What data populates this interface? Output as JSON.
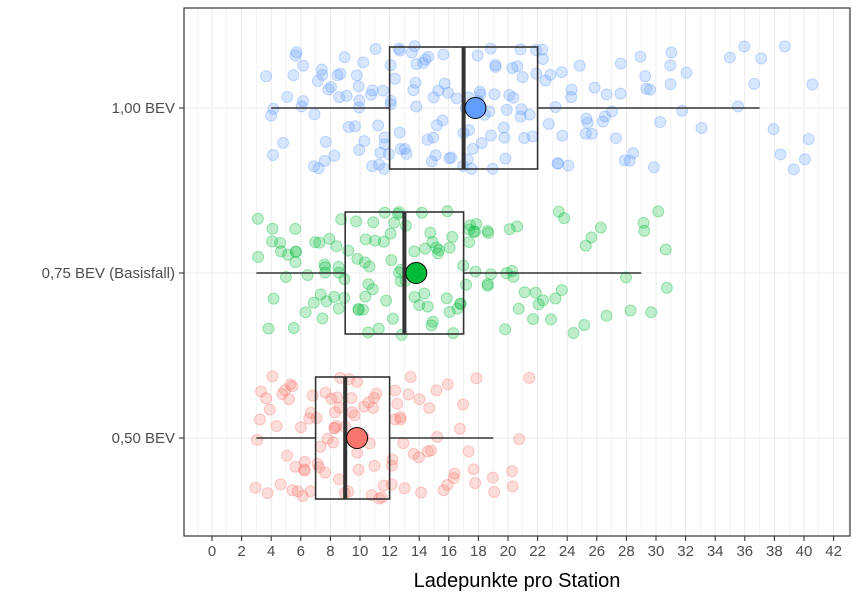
{
  "chart_data": {
    "type": "boxplot",
    "orientation": "horizontal",
    "xlabel": "Ladepunkte pro Station",
    "ylabel": "",
    "title": "",
    "xlim": [
      -2,
      43
    ],
    "x_ticks": [
      0,
      2,
      4,
      6,
      8,
      10,
      12,
      14,
      16,
      18,
      20,
      22,
      24,
      26,
      28,
      30,
      32,
      34,
      36,
      38,
      40,
      42
    ],
    "grid": true,
    "legend": "none",
    "categories": [
      "1,00 BEV",
      "0,75 BEV (Basisfall)",
      "0,50 BEV"
    ],
    "series": [
      {
        "category": "1,00 BEV",
        "color": "#619CFF",
        "whisker_low": 4,
        "q1": 12,
        "median": 17,
        "q3": 22,
        "whisker_high": 37,
        "mean": 17.8,
        "points": [
          4,
          4,
          4.2,
          4.5,
          5,
          5,
          5.5,
          5.5,
          6,
          6,
          6,
          6.5,
          6.5,
          7,
          7,
          7,
          7.5,
          7.5,
          8,
          8,
          8,
          8,
          8.5,
          8.5,
          9,
          9,
          9,
          9,
          9,
          9.5,
          9.5,
          10,
          10,
          10,
          10,
          10,
          10.5,
          10.5,
          11,
          11,
          11,
          11,
          11,
          11.5,
          11.5,
          12,
          12,
          12,
          12,
          12,
          12,
          12,
          12.5,
          12.5,
          13,
          13,
          13,
          13,
          13,
          13.5,
          13.5,
          14,
          14,
          14,
          14,
          14,
          14.5,
          14.5,
          15,
          15,
          15,
          15,
          15,
          15.5,
          15.5,
          16,
          16,
          16,
          16,
          16,
          16.5,
          16.5,
          17,
          17,
          17,
          17,
          17,
          17,
          17.5,
          17.5,
          18,
          18,
          18,
          18,
          18,
          18.5,
          18.5,
          19,
          19,
          19,
          19,
          19,
          19.5,
          19.5,
          20,
          20,
          20,
          20,
          20,
          20.5,
          20.5,
          21,
          21,
          21,
          21,
          21.5,
          21.5,
          22,
          22,
          22,
          22,
          22,
          22.5,
          23,
          23,
          23,
          23,
          23.5,
          24,
          24,
          24,
          24,
          24.5,
          25,
          25,
          25,
          25.5,
          26,
          26,
          26,
          26.5,
          27,
          27,
          27,
          27.5,
          28,
          28,
          28,
          28.5,
          29,
          29,
          29.5,
          30,
          30,
          30,
          31,
          31,
          31,
          32,
          32,
          33,
          35,
          36,
          36,
          37,
          37,
          38,
          38,
          39,
          39,
          40,
          40,
          41
        ]
      },
      {
        "category": "0,75 BEV (Basisfall)",
        "color": "#00BA38",
        "whisker_low": 3,
        "q1": 9,
        "median": 13,
        "q3": 17,
        "whisker_high": 29,
        "mean": 13.8,
        "points": [
          3,
          3,
          4,
          4,
          4,
          4.5,
          5,
          5,
          5,
          5.5,
          5.5,
          6,
          6,
          6,
          6,
          6.5,
          6.5,
          7,
          7,
          7,
          7,
          7.5,
          7.5,
          8,
          8,
          8,
          8,
          8,
          8.5,
          8.5,
          9,
          9,
          9,
          9,
          9,
          9,
          9.5,
          9.5,
          10,
          10,
          10,
          10,
          10,
          10.5,
          10.5,
          11,
          11,
          11,
          11,
          11,
          11.5,
          11.5,
          12,
          12,
          12,
          12,
          12,
          12.5,
          12.5,
          13,
          13,
          13,
          13,
          13,
          13,
          13.5,
          13.5,
          14,
          14,
          14,
          14,
          14,
          14.5,
          14.5,
          15,
          15,
          15,
          15,
          15,
          15.5,
          15.5,
          16,
          16,
          16,
          16,
          16,
          16.5,
          16.5,
          17,
          17,
          17,
          17,
          17.5,
          17.5,
          18,
          18,
          18,
          18,
          18.5,
          19,
          19,
          19,
          19,
          19.5,
          20,
          20,
          20,
          20.5,
          21,
          21,
          21,
          21.5,
          22,
          22,
          22,
          23,
          23,
          23,
          24,
          24,
          24,
          25,
          25,
          26,
          26,
          27,
          28,
          28,
          29,
          29,
          30,
          30,
          31,
          31
        ]
      },
      {
        "category": "0,50 BEV",
        "color": "#F8766D",
        "whisker_low": 3,
        "q1": 7,
        "median": 9,
        "q3": 12,
        "whisker_high": 19,
        "mean": 9.8,
        "points": [
          3,
          3,
          3,
          3.5,
          4,
          4,
          4,
          4,
          4.5,
          4.5,
          5,
          5,
          5,
          5,
          5,
          5.5,
          5.5,
          6,
          6,
          6,
          6,
          6,
          6,
          6.5,
          6.5,
          7,
          7,
          7,
          7,
          7,
          7,
          7,
          7.5,
          7.5,
          8,
          8,
          8,
          8,
          8,
          8,
          8,
          8.5,
          8.5,
          9,
          9,
          9,
          9,
          9,
          9,
          9,
          9.5,
          9.5,
          10,
          10,
          10,
          10,
          10,
          10,
          10.5,
          10.5,
          11,
          11,
          11,
          11,
          11,
          11,
          11.5,
          11.5,
          12,
          12,
          12,
          12,
          12,
          12.5,
          12.5,
          13,
          13,
          13,
          13,
          13,
          13.5,
          14,
          14,
          14,
          14,
          14.5,
          15,
          15,
          15,
          15,
          15.5,
          16,
          16,
          16,
          16.5,
          17,
          17,
          17,
          18,
          18,
          18,
          19,
          19,
          20,
          20,
          21,
          21
        ]
      }
    ]
  }
}
